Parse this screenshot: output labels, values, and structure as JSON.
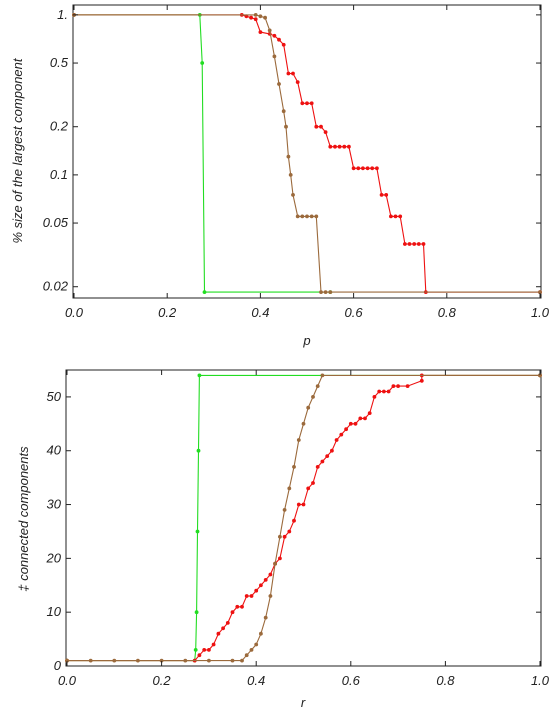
{
  "colors": {
    "green": "#22dd22",
    "red": "#ee1111",
    "brown": "#9b6a3c",
    "frame": "#222222"
  },
  "chart_data": [
    {
      "type": "line",
      "title": "",
      "xlabel": "p",
      "ylabel": "% size of the largest component",
      "xlim": [
        0,
        1
      ],
      "ylim": [
        0.0175,
        1.12
      ],
      "yscale": "log",
      "grid": false,
      "xticks": [
        0,
        0.2,
        0.4,
        0.6,
        0.8,
        1.0
      ],
      "xtick_labels": [
        "0.0",
        "0.2",
        "0.4",
        "0.6",
        "0.8",
        "1.0"
      ],
      "yticks": [
        1,
        0.5,
        0.2,
        0.1,
        0.05,
        0.02
      ],
      "ytick_labels": [
        "1.",
        "0.5",
        "0.2",
        "0.1",
        "0.05",
        "0.02"
      ],
      "series": [
        {
          "color": "green",
          "x": [
            0,
            0.27,
            0.275,
            0.28,
            0.55
          ],
          "y": [
            1,
            1,
            0.5,
            0.0185,
            0.0185
          ]
        },
        {
          "color": "red",
          "x": [
            0,
            0.36,
            0.37,
            0.38,
            0.39,
            0.4,
            0.42,
            0.43,
            0.44,
            0.45,
            0.46,
            0.47,
            0.48,
            0.49,
            0.5,
            0.51,
            0.52,
            0.53,
            0.54,
            0.55,
            0.56,
            0.57,
            0.58,
            0.59,
            0.6,
            0.61,
            0.62,
            0.63,
            0.64,
            0.65,
            0.66,
            0.67,
            0.68,
            0.69,
            0.7,
            0.71,
            0.72,
            0.73,
            0.74,
            0.75,
            0.755,
            1.0
          ],
          "y": [
            1,
            1,
            0.98,
            0.96,
            0.94,
            0.78,
            0.76,
            0.74,
            0.7,
            0.65,
            0.43,
            0.43,
            0.38,
            0.28,
            0.28,
            0.28,
            0.2,
            0.2,
            0.185,
            0.15,
            0.15,
            0.15,
            0.15,
            0.15,
            0.11,
            0.11,
            0.11,
            0.11,
            0.11,
            0.11,
            0.075,
            0.075,
            0.055,
            0.055,
            0.055,
            0.037,
            0.037,
            0.037,
            0.037,
            0.037,
            0.0185,
            0.0185
          ]
        },
        {
          "color": "brown",
          "x": [
            0,
            0.39,
            0.4,
            0.41,
            0.42,
            0.43,
            0.44,
            0.45,
            0.455,
            0.46,
            0.465,
            0.47,
            0.48,
            0.49,
            0.5,
            0.51,
            0.52,
            0.53,
            0.54,
            0.55,
            1.0
          ],
          "y": [
            1,
            1,
            0.98,
            0.96,
            0.8,
            0.55,
            0.37,
            0.25,
            0.2,
            0.13,
            0.1,
            0.075,
            0.055,
            0.055,
            0.055,
            0.055,
            0.055,
            0.0185,
            0.0185,
            0.0185,
            0.0185
          ]
        }
      ]
    },
    {
      "type": "line",
      "title": "",
      "xlabel": "r",
      "ylabel": "‡ connected components",
      "xlim": [
        0,
        1
      ],
      "ylim": [
        0,
        55
      ],
      "grid": false,
      "xticks": [
        0,
        0.2,
        0.4,
        0.6,
        0.8,
        1.0
      ],
      "xtick_labels": [
        "0.0",
        "0.2",
        "0.4",
        "0.6",
        "0.8",
        "1.0"
      ],
      "yticks": [
        0,
        10,
        20,
        30,
        40,
        50
      ],
      "ytick_labels": [
        "0",
        "10",
        "20",
        "30",
        "40",
        "50"
      ],
      "series": [
        {
          "color": "green",
          "x": [
            0,
            0.27,
            0.272,
            0.274,
            0.276,
            0.278,
            0.28,
            1.0
          ],
          "y": [
            1,
            1,
            3,
            10,
            25,
            40,
            54,
            54
          ]
        },
        {
          "color": "red",
          "x": [
            0,
            0.27,
            0.28,
            0.29,
            0.3,
            0.31,
            0.32,
            0.33,
            0.34,
            0.35,
            0.36,
            0.37,
            0.38,
            0.39,
            0.4,
            0.41,
            0.42,
            0.43,
            0.44,
            0.45,
            0.46,
            0.47,
            0.48,
            0.49,
            0.5,
            0.51,
            0.52,
            0.53,
            0.54,
            0.55,
            0.56,
            0.57,
            0.58,
            0.59,
            0.6,
            0.61,
            0.62,
            0.63,
            0.64,
            0.65,
            0.66,
            0.67,
            0.68,
            0.69,
            0.7,
            0.72,
            0.75,
            0.75,
            1.0
          ],
          "y": [
            1,
            1,
            2,
            3,
            3,
            4,
            6,
            7,
            8,
            10,
            11,
            11,
            13,
            13,
            14,
            15,
            16,
            17,
            19,
            20,
            24,
            25,
            27,
            30,
            30,
            33,
            34,
            37,
            38,
            39,
            40,
            42,
            43,
            44,
            45,
            45,
            46,
            46,
            47,
            50,
            51,
            51,
            51,
            52,
            52,
            52,
            53,
            54,
            54
          ]
        },
        {
          "color": "brown",
          "x": [
            0,
            0.05,
            0.1,
            0.15,
            0.2,
            0.25,
            0.3,
            0.35,
            0.37,
            0.38,
            0.39,
            0.4,
            0.41,
            0.42,
            0.43,
            0.44,
            0.45,
            0.46,
            0.47,
            0.48,
            0.49,
            0.5,
            0.51,
            0.52,
            0.53,
            0.54,
            1.0
          ],
          "y": [
            1,
            1,
            1,
            1,
            1,
            1,
            1,
            1,
            1,
            2,
            3,
            4,
            6,
            9,
            13,
            19,
            24,
            29,
            33,
            37,
            42,
            45,
            48,
            50,
            52,
            54,
            54
          ]
        }
      ]
    }
  ]
}
